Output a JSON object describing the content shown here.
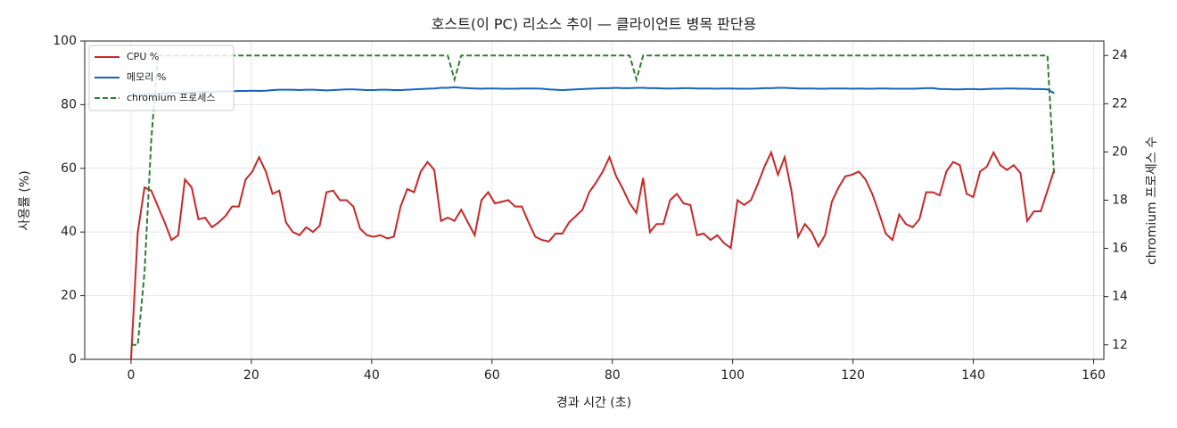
{
  "chart_data": {
    "type": "line",
    "title": "호스트(이 PC) 리소스 추이 — 클라이언트 병목 판단용",
    "x_label": "경과 시간 (초)",
    "y_label": "사용률 (%)",
    "y2_label": "chromium 프로세스 수",
    "xlim": [
      -7.7,
      161.7
    ],
    "xticks": [
      0,
      20,
      40,
      60,
      80,
      100,
      120,
      140,
      160
    ],
    "ylim": [
      0,
      100
    ],
    "yticks": [
      0,
      20,
      40,
      60,
      80,
      100
    ],
    "y2lim": [
      11.4,
      24.6
    ],
    "y2ticks": [
      12,
      14,
      16,
      18,
      20,
      22,
      24
    ],
    "grid": true,
    "legend": "upper left",
    "x": [
      0,
      1.12,
      2.24,
      3.36,
      4.48,
      5.6,
      6.72,
      7.84,
      8.96,
      10.08,
      11.2,
      12.32,
      13.44,
      14.56,
      15.68,
      16.8,
      17.92,
      19.04,
      20.16,
      21.28,
      22.4,
      23.52,
      24.64,
      25.76,
      26.88,
      28,
      29.12,
      30.24,
      31.36,
      32.48,
      33.6,
      34.72,
      35.84,
      36.96,
      38.08,
      39.2,
      40.32,
      41.44,
      42.56,
      43.68,
      44.8,
      45.92,
      47.04,
      48.16,
      49.28,
      50.4,
      51.52,
      52.64,
      53.76,
      54.88,
      56,
      57.12,
      58.24,
      59.36,
      60.48,
      61.6,
      62.72,
      63.84,
      64.96,
      66.08,
      67.2,
      68.32,
      69.44,
      70.56,
      71.68,
      72.8,
      73.92,
      75.04,
      76.16,
      77.28,
      78.4,
      79.52,
      80.64,
      81.76,
      82.88,
      84,
      85.12,
      86.24,
      87.36,
      88.48,
      89.6,
      90.72,
      91.84,
      92.96,
      94.08,
      95.2,
      96.32,
      97.44,
      98.56,
      99.68,
      100.8,
      101.92,
      103.04,
      104.16,
      105.28,
      106.4,
      107.52,
      108.64,
      109.76,
      110.88,
      112,
      113.12,
      114.24,
      115.36,
      116.48,
      117.6,
      118.72,
      119.84,
      120.96,
      122.08,
      123.2,
      124.32,
      125.44,
      126.56,
      127.68,
      128.8,
      129.92,
      131.04,
      132.16,
      133.28,
      134.4,
      135.52,
      136.64,
      137.76,
      138.88,
      140,
      141.12,
      142.24,
      143.36,
      144.48,
      145.6,
      146.72,
      147.84,
      148.96,
      150.08,
      151.2,
      152.32,
      153.44
    ],
    "series": [
      {
        "name": "CPU %",
        "color": "#c62828",
        "linestyle": "solid",
        "values": [
          0,
          40,
          54,
          53,
          48,
          43,
          37.5,
          39,
          56.5,
          54,
          44,
          44.5,
          41.5,
          43,
          45,
          48,
          48,
          56.5,
          59,
          63.5,
          59,
          52,
          53,
          43,
          40,
          39,
          41.5,
          40,
          42,
          52.5,
          53,
          50,
          50,
          48,
          41,
          39,
          38.5,
          39,
          38,
          38.5,
          48,
          53.5,
          52.5,
          59,
          62,
          59.5,
          43.5,
          44.5,
          43.5,
          47,
          43,
          39,
          50,
          52.5,
          49,
          49.5,
          50,
          48,
          48,
          43,
          38.5,
          37.5,
          37,
          39.5,
          39.5,
          43,
          45,
          47,
          52.5,
          55.5,
          59,
          63.5,
          57.5,
          53.5,
          49,
          46,
          57,
          40,
          42.5,
          42.5,
          50,
          52,
          49,
          48.5,
          39,
          39.5,
          37.5,
          39,
          36.5,
          35,
          50,
          48.5,
          50,
          55,
          60.5,
          65,
          58,
          63.5,
          53,
          38.5,
          42.5,
          40,
          35.5,
          39,
          49.5,
          54,
          57.5,
          58,
          59,
          56.5,
          52,
          46,
          39.5,
          37.5,
          45.5,
          42.5,
          41.5,
          44,
          52.5,
          52.5,
          51.5,
          59,
          62,
          61,
          52,
          51,
          59,
          60.5,
          65,
          61,
          59.5,
          61,
          58.5,
          43.5,
          46.5,
          46.5,
          53,
          59.5
        ]
      },
      {
        "name": "메모리 %",
        "color": "#1565c0",
        "linestyle": "solid",
        "values": [
          83.0,
          83.1,
          83.2,
          83.3,
          83.4,
          83.5,
          83.6,
          83.7,
          83.8,
          83.9,
          84.0,
          84.0,
          84.1,
          84.1,
          84.2,
          84.2,
          84.3,
          84.3,
          84.4,
          84.3,
          84.4,
          84.6,
          84.7,
          84.7,
          84.7,
          84.6,
          84.7,
          84.7,
          84.6,
          84.5,
          84.6,
          84.7,
          84.8,
          84.8,
          84.7,
          84.6,
          84.6,
          84.7,
          84.7,
          84.6,
          84.6,
          84.7,
          84.8,
          84.9,
          85.0,
          85.1,
          85.3,
          85.3,
          85.5,
          85.3,
          85.2,
          85.1,
          85.0,
          85.1,
          85.1,
          85.0,
          85.0,
          85.0,
          85.1,
          85.1,
          85.1,
          85.0,
          84.8,
          84.7,
          84.6,
          84.7,
          84.8,
          84.9,
          85.0,
          85.1,
          85.2,
          85.2,
          85.3,
          85.2,
          85.2,
          85.3,
          85.3,
          85.2,
          85.2,
          85.1,
          85.1,
          85.1,
          85.2,
          85.2,
          85.1,
          85.1,
          85.1,
          85.0,
          85.1,
          85.1,
          85.0,
          85.0,
          85.0,
          85.1,
          85.2,
          85.2,
          85.3,
          85.3,
          85.2,
          85.1,
          85.1,
          85.1,
          85.0,
          85.0,
          85.1,
          85.1,
          85.1,
          85.0,
          85.1,
          85.0,
          85.0,
          85.1,
          85.1,
          85.0,
          85.0,
          85.0,
          85.0,
          85.1,
          85.2,
          85.2,
          84.9,
          84.9,
          84.8,
          84.8,
          84.9,
          84.9,
          84.8,
          84.9,
          85.0,
          85.0,
          85.1,
          85.1,
          85.0,
          85.0,
          84.9,
          84.9,
          84.8,
          83.6
        ]
      },
      {
        "name": "chromium 프로세스",
        "color": "#2e7d32",
        "linestyle": "dashed",
        "axis": "y2",
        "values": [
          12,
          12,
          15,
          20.5,
          24,
          24,
          24,
          24,
          24,
          24,
          24,
          24,
          24,
          24,
          24,
          24,
          24,
          24,
          24,
          24,
          24,
          24,
          24,
          24,
          24,
          24,
          24,
          24,
          24,
          24,
          24,
          24,
          24,
          24,
          24,
          24,
          24,
          24,
          24,
          24,
          24,
          24,
          24,
          24,
          24,
          24,
          24,
          24,
          23,
          24,
          24,
          24,
          24,
          24,
          24,
          24,
          24,
          24,
          24,
          24,
          24,
          24,
          24,
          24,
          24,
          24,
          24,
          24,
          24,
          24,
          24,
          24,
          24,
          24,
          24,
          23,
          24,
          24,
          24,
          24,
          24,
          24,
          24,
          24,
          24,
          24,
          24,
          24,
          24,
          24,
          24,
          24,
          24,
          24,
          24,
          24,
          24,
          24,
          24,
          24,
          24,
          24,
          24,
          24,
          24,
          24,
          24,
          24,
          24,
          24,
          24,
          24,
          24,
          24,
          24,
          24,
          24,
          24,
          24,
          24,
          24,
          24,
          24,
          24,
          24,
          24,
          24,
          24,
          24,
          24,
          24,
          24,
          24,
          24,
          24,
          24,
          24,
          19
        ]
      }
    ]
  }
}
